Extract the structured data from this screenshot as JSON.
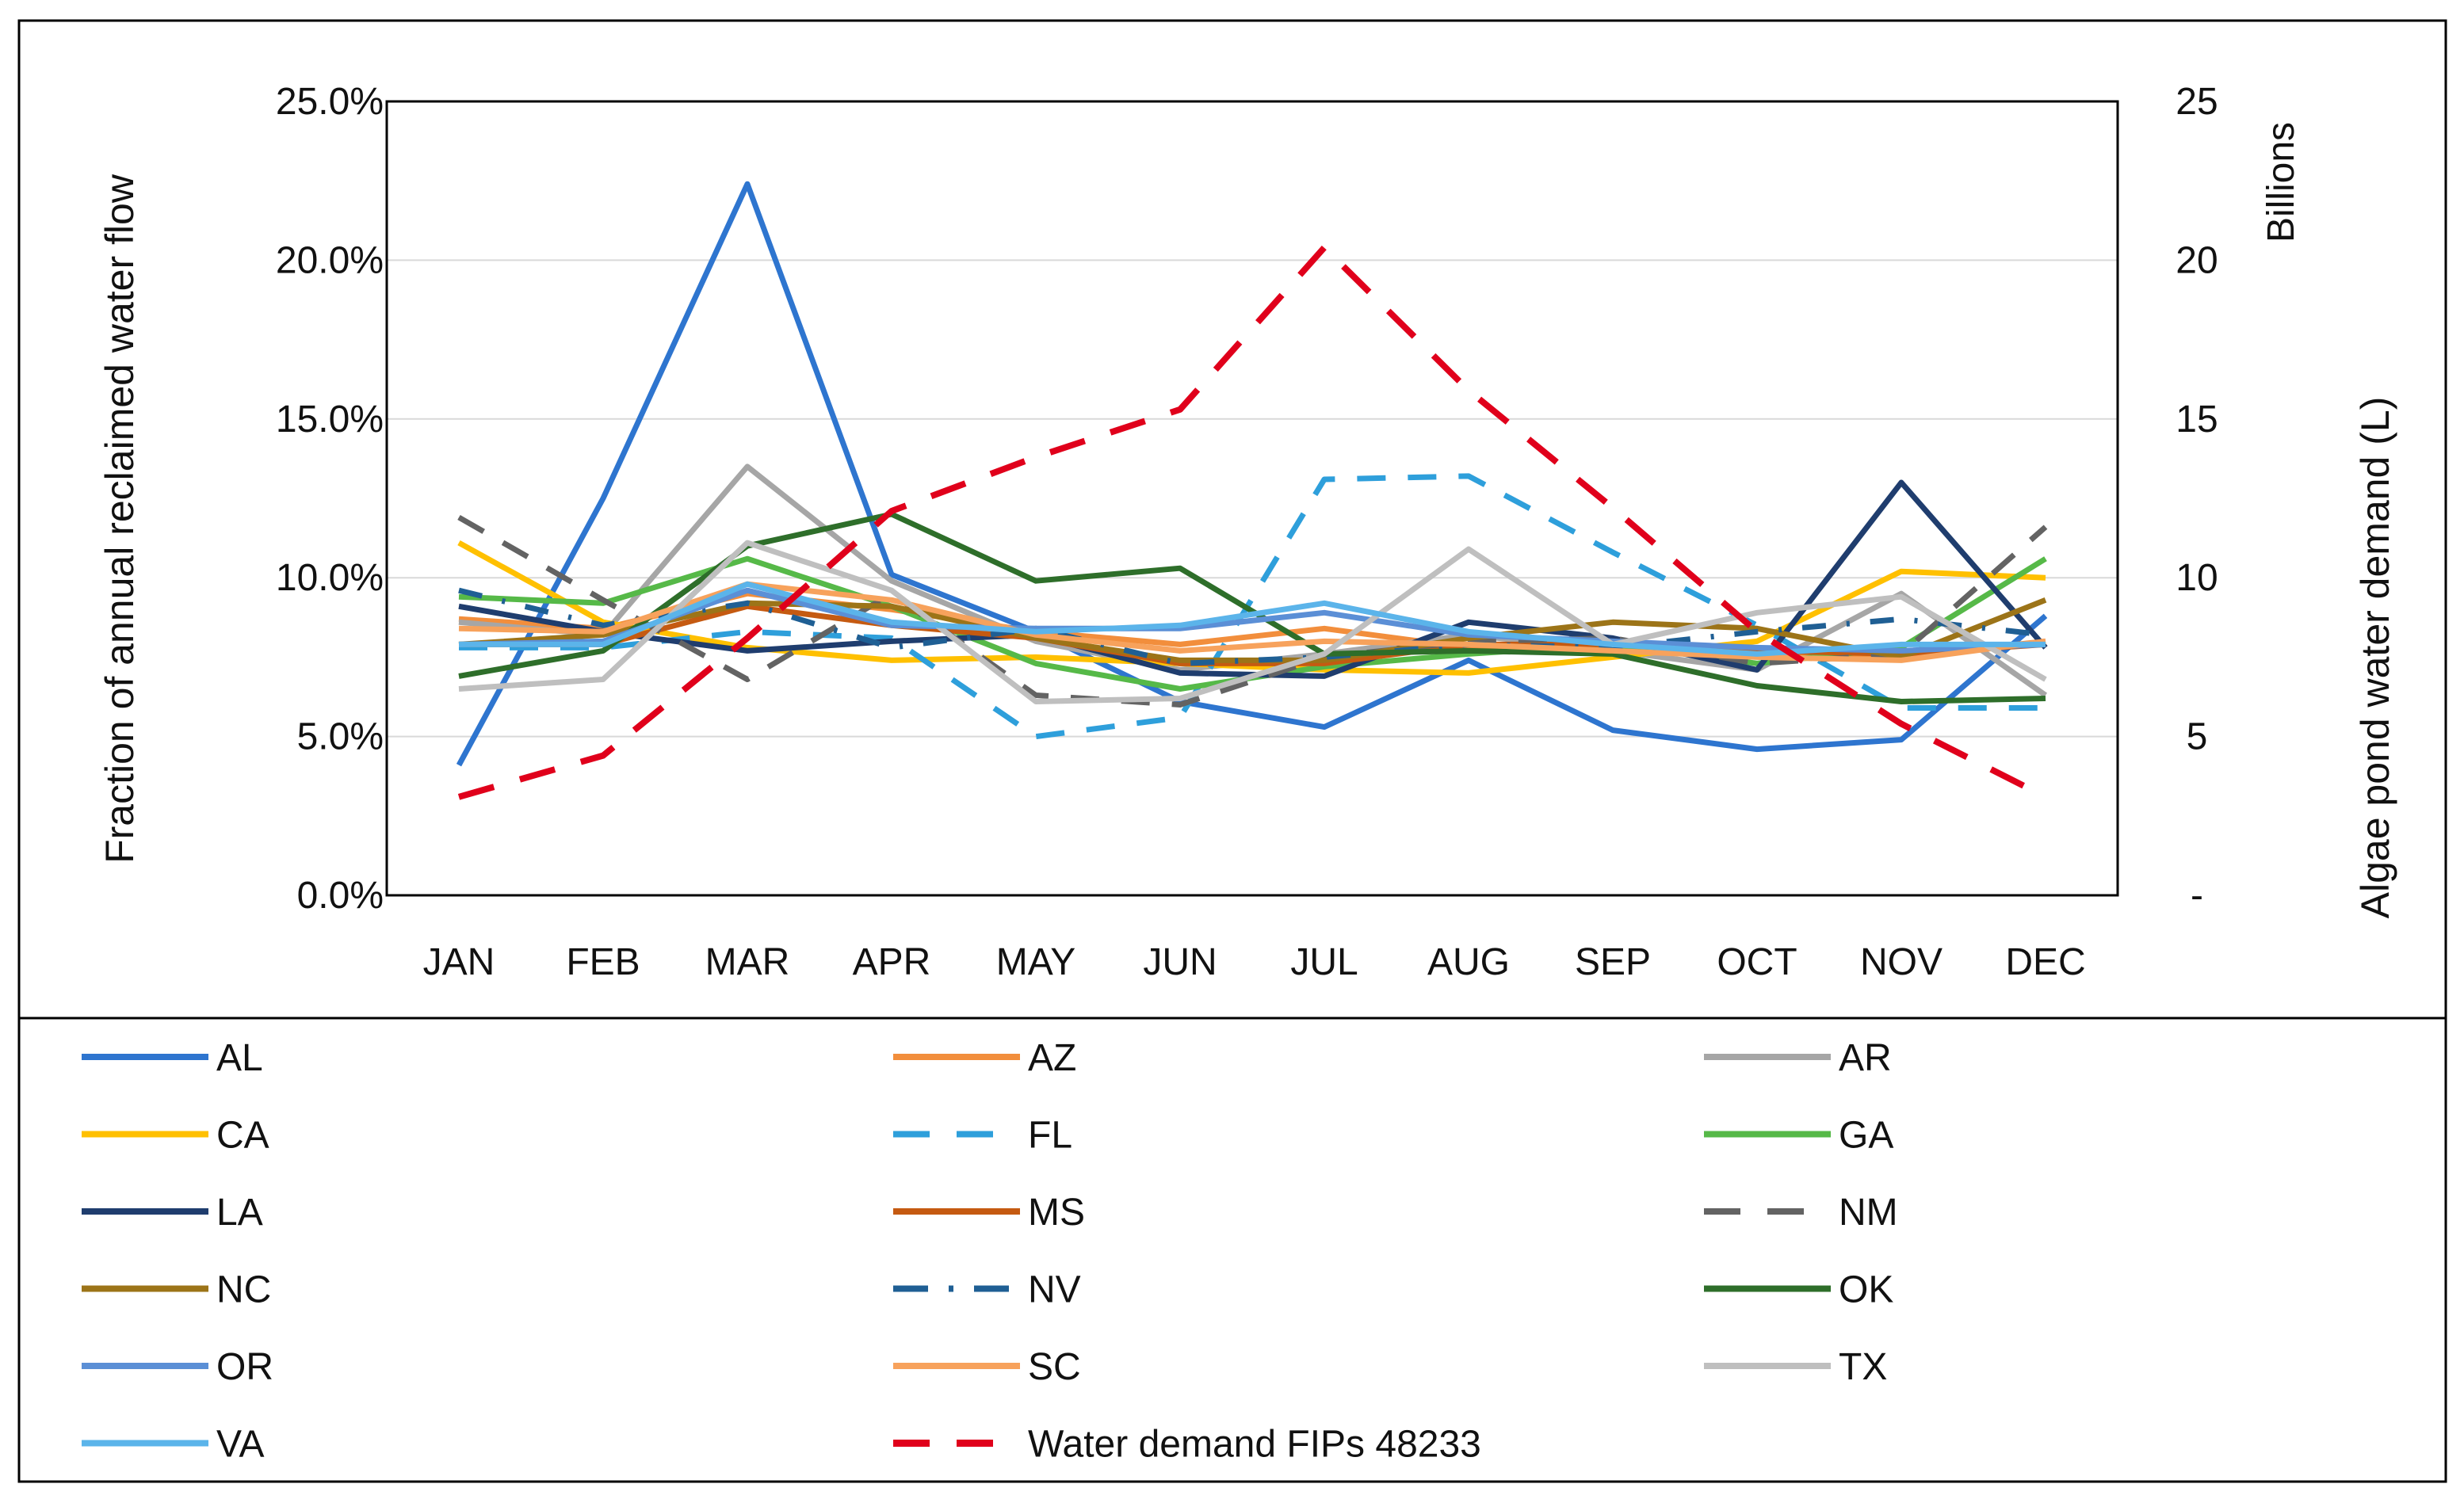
{
  "chart_data": {
    "type": "line",
    "categories": [
      "JAN",
      "FEB",
      "MAR",
      "APR",
      "MAY",
      "JUN",
      "JUL",
      "AUG",
      "SEP",
      "OCT",
      "NOV",
      "DEC"
    ],
    "ylabel": "Fraction of annual reclaimed water flow",
    "y2label": "Algae pond water demand (L)",
    "y2unit": "Billions",
    "ylim": [
      0,
      25
    ],
    "y2lim": [
      0,
      25
    ],
    "yticks": [
      "0.0%",
      "5.0%",
      "10.0%",
      "15.0%",
      "20.0%",
      "25.0%"
    ],
    "y2ticks": [
      "-",
      "5",
      "10",
      "15",
      "20",
      "25"
    ],
    "grid": true,
    "legend_position": "bottom",
    "series": [
      {
        "name": "AL",
        "color": "#2E75CF",
        "dash": "solid",
        "axis": "left",
        "values": [
          4.1,
          12.5,
          22.4,
          10.1,
          8.3,
          6.1,
          5.3,
          7.4,
          5.2,
          4.6,
          4.9,
          8.8
        ]
      },
      {
        "name": "AZ",
        "color": "#F28E3C",
        "dash": "solid",
        "axis": "left",
        "values": [
          8.7,
          8.4,
          9.5,
          9.0,
          8.3,
          7.9,
          8.4,
          7.8,
          7.9,
          7.6,
          7.5,
          8.0
        ]
      },
      {
        "name": "AR",
        "color": "#A6A6A6",
        "dash": "solid",
        "axis": "left",
        "values": [
          8.6,
          8.2,
          13.5,
          9.9,
          8.0,
          7.1,
          7.6,
          8.2,
          7.7,
          7.1,
          9.5,
          6.3
        ]
      },
      {
        "name": "CA",
        "color": "#FFC000",
        "dash": "solid",
        "axis": "left",
        "values": [
          11.1,
          8.6,
          7.8,
          7.4,
          7.5,
          7.3,
          7.1,
          7.0,
          7.5,
          8.0,
          10.2,
          10.0
        ]
      },
      {
        "name": "FL",
        "color": "#2E9FDB",
        "dash": "dash",
        "axis": "left",
        "values": [
          7.8,
          7.8,
          8.3,
          8.1,
          5.0,
          5.6,
          13.1,
          13.2,
          10.8,
          8.5,
          5.9,
          5.9
        ]
      },
      {
        "name": "GA",
        "color": "#56B948",
        "dash": "solid",
        "axis": "left",
        "values": [
          9.4,
          9.2,
          10.6,
          9.1,
          7.3,
          6.5,
          7.2,
          7.6,
          7.9,
          7.3,
          7.8,
          10.6
        ]
      },
      {
        "name": "LA",
        "color": "#1F3D6E",
        "dash": "solid",
        "axis": "left",
        "values": [
          9.1,
          8.3,
          7.7,
          8.0,
          8.2,
          7.0,
          6.9,
          8.6,
          8.1,
          7.1,
          13.0,
          7.8
        ]
      },
      {
        "name": "MS",
        "color": "#C55A11",
        "dash": "solid",
        "axis": "left",
        "values": [
          7.9,
          7.9,
          9.1,
          8.5,
          8.1,
          7.3,
          7.3,
          7.9,
          7.9,
          7.7,
          7.6,
          7.9
        ]
      },
      {
        "name": "NM",
        "color": "#636363",
        "dash": "dash",
        "axis": "left",
        "values": [
          11.9,
          9.3,
          6.8,
          9.5,
          6.3,
          6.0,
          7.5,
          8.0,
          8.1,
          7.3,
          7.6,
          11.6
        ]
      },
      {
        "name": "NC",
        "color": "#9C7418",
        "dash": "solid",
        "axis": "left",
        "values": [
          7.9,
          8.2,
          9.2,
          9.1,
          8.1,
          7.4,
          7.4,
          8.1,
          8.6,
          8.4,
          7.5,
          9.3
        ]
      },
      {
        "name": "NV",
        "color": "#1F5F94",
        "dash": "dashdot",
        "axis": "left",
        "values": [
          9.6,
          8.5,
          9.2,
          7.8,
          8.4,
          7.3,
          7.5,
          7.9,
          7.8,
          8.3,
          8.7,
          8.2
        ]
      },
      {
        "name": "OK",
        "color": "#2E6E2A",
        "dash": "solid",
        "axis": "left",
        "values": [
          6.9,
          7.7,
          11.0,
          12.0,
          9.9,
          10.3,
          7.6,
          7.7,
          7.6,
          6.6,
          6.1,
          6.2
        ]
      },
      {
        "name": "OR",
        "color": "#5B8FD6",
        "dash": "solid",
        "axis": "left",
        "values": [
          7.9,
          8.0,
          9.6,
          8.5,
          8.4,
          8.4,
          8.9,
          8.2,
          8.0,
          7.8,
          7.7,
          7.9
        ]
      },
      {
        "name": "SC",
        "color": "#F7A25C",
        "dash": "solid",
        "axis": "left",
        "values": [
          8.4,
          8.3,
          9.8,
          9.3,
          8.2,
          7.7,
          8.0,
          7.9,
          7.7,
          7.5,
          7.4,
          8.0
        ]
      },
      {
        "name": "TX",
        "color": "#BFBFBF",
        "dash": "solid",
        "axis": "left",
        "values": [
          6.5,
          6.8,
          11.1,
          9.6,
          6.1,
          6.2,
          7.6,
          10.9,
          7.9,
          8.9,
          9.4,
          6.8
        ]
      },
      {
        "name": "VA",
        "color": "#5BB4EA",
        "dash": "solid",
        "axis": "left",
        "values": [
          7.9,
          7.9,
          9.8,
          8.6,
          8.3,
          8.5,
          9.2,
          8.3,
          7.9,
          7.6,
          7.9,
          7.9
        ]
      },
      {
        "name": "Water demand FIPs 48233",
        "color": "#E0001B",
        "dash": "longdash",
        "axis": "right",
        "values": [
          3.1,
          4.4,
          8.1,
          12.1,
          13.8,
          15.3,
          20.4,
          15.9,
          12.2,
          8.3,
          5.4,
          3.1
        ]
      }
    ]
  }
}
